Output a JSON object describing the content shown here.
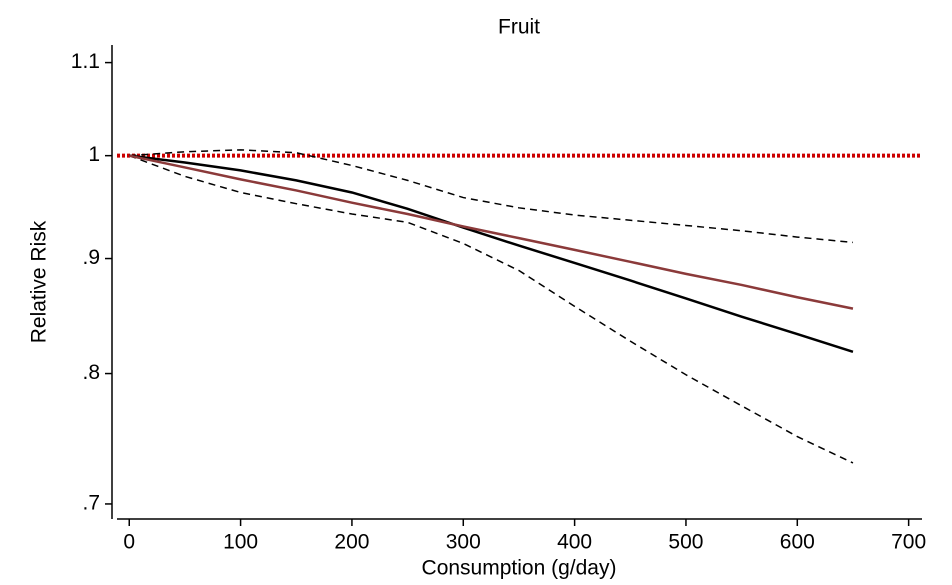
{
  "chart_data": {
    "type": "line",
    "title": "Fruit",
    "x_label": "Consumption (g/day)",
    "y_label": "Relative Risk",
    "x": [
      0,
      50,
      100,
      150,
      200,
      250,
      300,
      350,
      400,
      450,
      500,
      550,
      600,
      650
    ],
    "series": [
      {
        "color": "#000000",
        "dash": "none",
        "values": [
          1,
          0.993,
          0.985,
          0.975,
          0.963,
          0.947,
          0.929,
          0.912,
          0.896,
          0.88,
          0.864,
          0.848,
          0.833,
          0.818
        ]
      },
      {
        "color": "#000000",
        "dash": "dashed",
        "values": [
          1,
          1.004,
          1.006,
          1.003,
          0.99,
          0.975,
          0.958,
          0.948,
          0.941,
          0.936,
          0.931,
          0.926,
          0.92,
          0.915
        ]
      },
      {
        "color": "#000000",
        "dash": "dashed",
        "values": [
          1,
          0.979,
          0.963,
          0.952,
          0.942,
          0.934,
          0.914,
          0.889,
          0.857,
          0.827,
          0.799,
          0.774,
          0.75,
          0.73
        ]
      },
      {
        "color": "#8b3a3a",
        "dash": "none",
        "values": [
          1,
          0.988,
          0.976,
          0.965,
          0.953,
          0.942,
          0.93,
          0.919,
          0.908,
          0.897,
          0.886,
          0.876,
          0.865,
          0.855
        ]
      }
    ],
    "hline": {
      "value": 1,
      "color": "#cc0000",
      "dash": "dotted"
    },
    "xlim": [
      -11,
      712
    ],
    "xticks": [
      0,
      100,
      200,
      300,
      400,
      500,
      600,
      700
    ],
    "ylim": [
      0.69,
      1.12
    ],
    "yticks": [
      {
        "value": 0.7,
        "label": ".7"
      },
      {
        "value": 0.8,
        "label": ".8"
      },
      {
        "value": 0.9,
        "label": ".9"
      },
      1,
      1.1
    ],
    "y_log": true,
    "grid": false
  }
}
